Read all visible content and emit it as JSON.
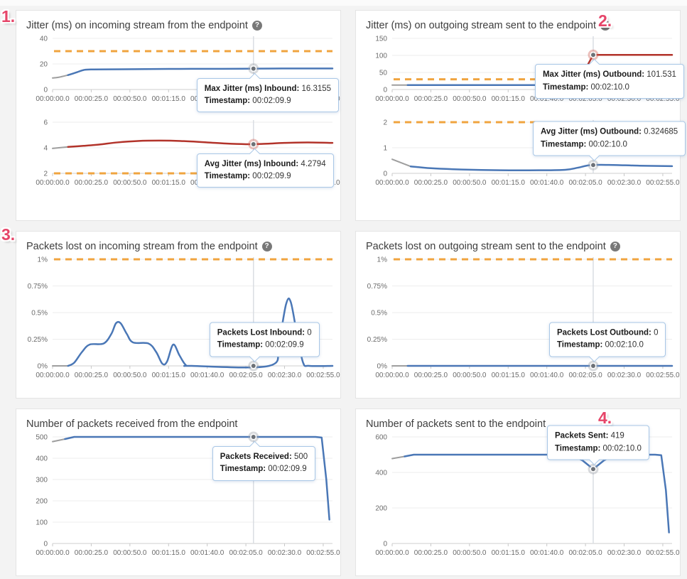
{
  "help_glyph": "?",
  "annotations": [
    {
      "label": "1."
    },
    {
      "label": "2."
    },
    {
      "label": "3."
    },
    {
      "label": "4."
    }
  ],
  "colors": {
    "blue": "#4a77b6",
    "red": "#b2332a",
    "gray": "#9e9e9e",
    "threshold_orange": "#f0a43f",
    "grid": "#ededed",
    "axis": "#cfcfcf",
    "tick": "#c8c8c8",
    "crosshair": "#d9dde3",
    "marker_dot": "#6d7177",
    "ring_gray": "rgba(158,163,170,0.40)",
    "ring_red": "rgba(207,98,87,0.40)",
    "tooltip_border": "#a9c7e6"
  },
  "x_axis": {
    "tmin": 0,
    "tmax": 181,
    "tick_seconds": [
      0,
      25,
      50,
      75,
      100,
      125,
      150,
      175
    ],
    "ticks": [
      "00:00:00.0",
      "00:00:25.0",
      "00:00:50.0",
      "00:01:15.0",
      "00:01:40.0",
      "00:02:05.0",
      "00:02:30.0",
      "00:02:55.0"
    ]
  },
  "chart_data": [
    {
      "type": "line",
      "title": "Jitter (ms) on incoming stream from the endpoint",
      "has_help": true,
      "subcharts": [
        {
          "name": "max-jitter-inbound",
          "ymin": 0,
          "ymax": 40,
          "yticks": [
            0,
            20,
            40
          ],
          "ytick_labels": [
            "0",
            "20",
            "40"
          ],
          "threshold": 30,
          "smooth": true,
          "series": [
            {
              "name": "lead-in",
              "color": "gray",
              "points": [
                [
                  0,
                  9
                ],
                [
                  4,
                  9.6
                ],
                [
                  10,
                  11.3
                ]
              ]
            },
            {
              "name": "max-jitter-inbound",
              "color": "blue",
              "points": [
                [
                  10,
                  11.3
                ],
                [
                  15,
                  13.2
                ],
                [
                  20,
                  15.2
                ],
                [
                  25,
                  15.7
                ],
                [
                  45,
                  15.8
                ],
                [
                  75,
                  16.1
                ],
                [
                  110,
                  16.2
                ],
                [
                  129.9,
                  16.32
                ],
                [
                  155,
                  16.45
                ],
                [
                  181,
                  16.45
                ]
              ]
            }
          ],
          "hover": {
            "t": 129.9,
            "v": 16.3155,
            "ring": "gray"
          },
          "tooltip": {
            "label": "Max Jitter (ms) Inbound:",
            "value": "16.3155",
            "ts_label": "Timestamp:",
            "ts": "00:02:09.9",
            "pos": "below",
            "dx": -80
          }
        },
        {
          "name": "avg-jitter-inbound",
          "ymin": 2,
          "ymax": 6,
          "yticks": [
            2,
            4,
            6
          ],
          "ytick_labels": [
            "2",
            "4",
            "6"
          ],
          "threshold": 2,
          "smooth": true,
          "series": [
            {
              "name": "lead-in",
              "color": "gray",
              "points": [
                [
                  0,
                  3.95
                ],
                [
                  10,
                  4.07
                ]
              ]
            },
            {
              "name": "avg-jitter-inbound",
              "color": "red",
              "points": [
                [
                  10,
                  4.07
                ],
                [
                  20,
                  4.15
                ],
                [
                  30,
                  4.25
                ],
                [
                  42,
                  4.42
                ],
                [
                  55,
                  4.53
                ],
                [
                  70,
                  4.56
                ],
                [
                  85,
                  4.52
                ],
                [
                  100,
                  4.42
                ],
                [
                  112,
                  4.33
                ],
                [
                  125,
                  4.28
                ],
                [
                  135,
                  4.3
                ],
                [
                  150,
                  4.38
                ],
                [
                  165,
                  4.42
                ],
                [
                  181,
                  4.38
                ]
              ]
            }
          ],
          "hover": {
            "t": 129.9,
            "v": 4.2794,
            "ring": "red"
          },
          "tooltip": {
            "label": "Avg Jitter (ms) Inbound:",
            "value": "4.2794",
            "ts_label": "Timestamp:",
            "ts": "00:02:09.9",
            "pos": "below",
            "dx": -80
          }
        }
      ]
    },
    {
      "type": "line",
      "title": "Jitter (ms) on outgoing stream sent to the endpoint",
      "has_help": true,
      "subcharts": [
        {
          "name": "max-jitter-outbound",
          "ymin": 0,
          "ymax": 150,
          "yticks": [
            0,
            50,
            100,
            150
          ],
          "ytick_labels": [
            "0",
            "50",
            "100",
            "150"
          ],
          "threshold": 30,
          "smooth": false,
          "series": [
            {
              "name": "lead-in",
              "color": "gray",
              "points": [
                [
                  0,
                  13
                ],
                [
                  10,
                  13
                ]
              ]
            },
            {
              "name": "max-jitter-outbound-low",
              "color": "blue",
              "points": [
                [
                  10,
                  13
                ],
                [
                  118,
                  13
                ]
              ]
            },
            {
              "name": "max-jitter-outbound-high",
              "color": "red",
              "points": [
                [
                  118,
                  13
                ],
                [
                  124,
                  52
                ],
                [
                  130,
                  101.5
                ],
                [
                  181,
                  101.5
                ]
              ]
            }
          ],
          "hover": {
            "t": 130,
            "v": 101.531,
            "ring": "red"
          },
          "tooltip": {
            "label": "Max Jitter (ms) Outbound:",
            "value": "101.531",
            "ts_label": "Timestamp:",
            "ts": "00:02:10.0",
            "pos": "below",
            "dx": -82
          }
        },
        {
          "name": "avg-jitter-outbound",
          "ymin": 0,
          "ymax": 2,
          "yticks": [
            0,
            1,
            2
          ],
          "ytick_labels": [
            "0",
            "1",
            "2"
          ],
          "threshold": 2,
          "smooth": true,
          "series": [
            {
              "name": "lead-in",
              "color": "gray",
              "points": [
                [
                  0,
                  0.55
                ],
                [
                  12,
                  0.27
                ]
              ]
            },
            {
              "name": "avg-jitter-outbound",
              "color": "blue",
              "points": [
                [
                  12,
                  0.27
                ],
                [
                  25,
                  0.2
                ],
                [
                  45,
                  0.15
                ],
                [
                  70,
                  0.12
                ],
                [
                  95,
                  0.12
                ],
                [
                  112,
                  0.14
                ],
                [
                  120,
                  0.22
                ],
                [
                  128,
                  0.32
                ],
                [
                  140,
                  0.33
                ],
                [
                  160,
                  0.3
                ],
                [
                  181,
                  0.28
                ]
              ]
            }
          ],
          "hover": {
            "t": 130,
            "v": 0.324685,
            "ring": "gray"
          },
          "tooltip": {
            "label": "Avg Jitter (ms) Outbound:",
            "value": "0.324685",
            "ts_label": "Timestamp:",
            "ts": "00:02:10.0",
            "pos": "above",
            "dx": -85
          }
        }
      ]
    },
    {
      "type": "line",
      "title": "Packets lost on incoming stream from the endpoint",
      "has_help": true,
      "subcharts": [
        {
          "name": "packets-lost-inbound",
          "ymin": 0,
          "ymax": 1,
          "yticks": [
            0,
            0.25,
            0.5,
            0.75,
            1
          ],
          "ytick_labels": [
            "0%",
            "0.25%",
            "0.5%",
            "0.75%",
            "1%"
          ],
          "threshold": 1,
          "smooth": true,
          "series": [
            {
              "name": "lead-in",
              "color": "gray",
              "points": [
                [
                  0,
                  0
                ],
                [
                  10,
                  0
                ]
              ]
            },
            {
              "name": "packets-lost-inbound",
              "color": "blue",
              "points": [
                [
                  10,
                  0
                ],
                [
                  14,
                  0.03
                ],
                [
                  19,
                  0.13
                ],
                [
                  24,
                  0.2
                ],
                [
                  33,
                  0.21
                ],
                [
                  38,
                  0.3
                ],
                [
                  41,
                  0.4
                ],
                [
                  44,
                  0.4
                ],
                [
                  48,
                  0.3
                ],
                [
                  52,
                  0.22
                ],
                [
                  62,
                  0.21
                ],
                [
                  67,
                  0.13
                ],
                [
                  71,
                  0.02
                ],
                [
                  74,
                  0.04
                ],
                [
                  78,
                  0.2
                ],
                [
                  82,
                  0.1
                ],
                [
                  86,
                  0.01
                ],
                [
                  90,
                  0
                ],
                [
                  140,
                  0
                ],
                [
                  146,
                  0.2
                ],
                [
                  151,
                  0.58
                ],
                [
                  154,
                  0.6
                ],
                [
                  158,
                  0.3
                ],
                [
                  162,
                  0.03
                ],
                [
                  166,
                  0
                ],
                [
                  181,
                  0
                ]
              ]
            }
          ],
          "hover": {
            "t": 129.9,
            "v": 0,
            "ring": "gray"
          },
          "tooltip": {
            "label": "Packets Lost Inbound:",
            "value": "0",
            "ts_label": "Timestamp:",
            "ts": "00:02:09.9",
            "pos": "above",
            "dx": -62
          }
        }
      ]
    },
    {
      "type": "line",
      "title": "Packets lost on outgoing stream sent to the endpoint",
      "has_help": true,
      "subcharts": [
        {
          "name": "packets-lost-outbound",
          "ymin": 0,
          "ymax": 1,
          "yticks": [
            0,
            0.25,
            0.5,
            0.75,
            1
          ],
          "ytick_labels": [
            "0%",
            "0.25%",
            "0.5%",
            "0.75%",
            "1%"
          ],
          "threshold": 1,
          "smooth": false,
          "series": [
            {
              "name": "lead-in",
              "color": "gray",
              "points": [
                [
                  0,
                  0
                ],
                [
                  10,
                  0
                ]
              ]
            },
            {
              "name": "packets-lost-outbound",
              "color": "blue",
              "points": [
                [
                  10,
                  0
                ],
                [
                  181,
                  0
                ]
              ]
            }
          ],
          "hover": {
            "t": 130,
            "v": 0,
            "ring": "gray"
          },
          "tooltip": {
            "label": "Packets Lost Outbound:",
            "value": "0",
            "ts_label": "Timestamp:",
            "ts": "00:02:10.0",
            "pos": "above",
            "dx": -62
          }
        }
      ]
    },
    {
      "type": "line",
      "title": "Number of packets received from the endpoint",
      "has_help": false,
      "subcharts": [
        {
          "name": "packets-received",
          "ymin": 0,
          "ymax": 500,
          "yticks": [
            0,
            100,
            200,
            300,
            400,
            500
          ],
          "ytick_labels": [
            "0",
            "100",
            "200",
            "300",
            "400",
            "500"
          ],
          "threshold": null,
          "smooth": false,
          "series": [
            {
              "name": "lead-in",
              "color": "gray",
              "points": [
                [
                  0,
                  478
                ],
                [
                  8,
                  490
                ]
              ]
            },
            {
              "name": "packets-received",
              "color": "blue",
              "points": [
                [
                  8,
                  490
                ],
                [
                  14,
                  500
                ],
                [
                  60,
                  500
                ],
                [
                  129.9,
                  500
                ],
                [
                  170,
                  500
                ],
                [
                  174,
                  497
                ],
                [
                  177,
                  300
                ],
                [
                  179,
                  112
                ]
              ]
            }
          ],
          "hover": {
            "t": 129.9,
            "v": 500,
            "ring": "gray"
          },
          "tooltip": {
            "label": "Packets Received:",
            "value": "500",
            "ts_label": "Timestamp:",
            "ts": "00:02:09.9",
            "pos": "below",
            "dx": -58
          }
        }
      ]
    },
    {
      "type": "line",
      "title": "Number of packets sent to the endpoint",
      "has_help": false,
      "subcharts": [
        {
          "name": "packets-sent",
          "ymin": 0,
          "ymax": 600,
          "yticks": [
            0,
            200,
            400,
            600
          ],
          "ytick_labels": [
            "0",
            "200",
            "400",
            "600"
          ],
          "threshold": null,
          "smooth": false,
          "series": [
            {
              "name": "lead-in",
              "color": "gray",
              "points": [
                [
                  0,
                  478
                ],
                [
                  8,
                  490
                ]
              ]
            },
            {
              "name": "packets-sent",
              "color": "blue",
              "points": [
                [
                  8,
                  490
                ],
                [
                  14,
                  500
                ],
                [
                  115,
                  500
                ],
                [
                  123,
                  468
                ],
                [
                  130,
                  419
                ],
                [
                  137,
                  468
                ],
                [
                  144,
                  500
                ],
                [
                  170,
                  500
                ],
                [
                  174,
                  497
                ],
                [
                  177,
                  300
                ],
                [
                  179,
                  62
                ]
              ]
            }
          ],
          "hover": {
            "t": 130,
            "v": 419,
            "ring": "gray"
          },
          "tooltip": {
            "label": "Packets Sent:",
            "value": "419",
            "ts_label": "Timestamp:",
            "ts": "00:02:10.0",
            "pos": "above",
            "dx": -65
          }
        }
      ]
    }
  ]
}
